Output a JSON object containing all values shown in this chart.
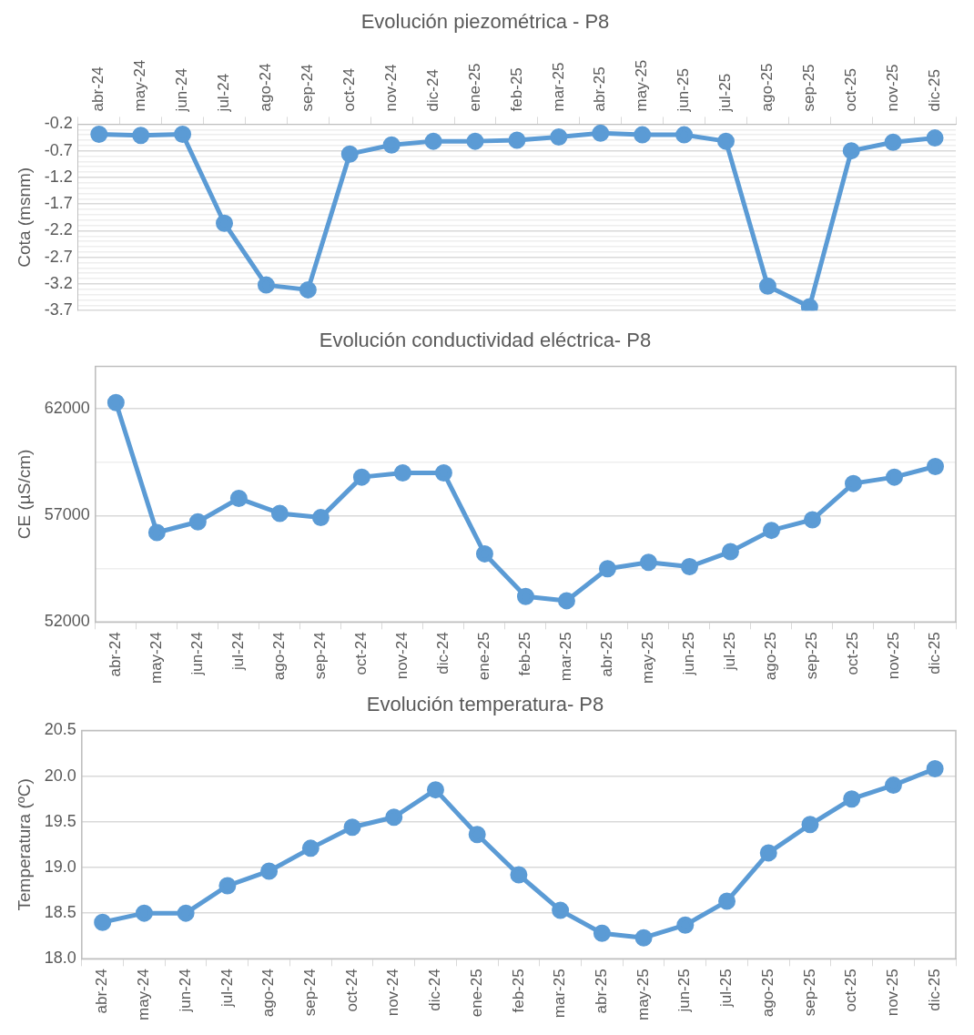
{
  "chart_data": [
    {
      "type": "line",
      "title": "Evolución piezométrica - P8",
      "ylabel": "Cota (msnm)",
      "categories": [
        "abr-24",
        "may-24",
        "jun-24",
        "jul-24",
        "ago-24",
        "sep-24",
        "oct-24",
        "nov-24",
        "dic-24",
        "ene-25",
        "feb-25",
        "mar-25",
        "abr-25",
        "may-25",
        "jun-25",
        "jul-25",
        "ago-25",
        "sep-25",
        "oct-25",
        "nov-25",
        "dic-25"
      ],
      "series": [
        {
          "color": "#5b9bd5",
          "values": [
            -0.39,
            -0.41,
            -0.39,
            -2.06,
            -3.22,
            -3.31,
            -0.76,
            -0.59,
            -0.52,
            -0.52,
            -0.5,
            -0.44,
            -0.37,
            -0.4,
            -0.4,
            -0.52,
            -3.24,
            -3.63,
            -0.7,
            -0.54,
            -0.46
          ]
        }
      ],
      "ylim": [
        -3.7,
        -0.2
      ],
      "yticks": [
        -3.7,
        {
          "value": -3.6,
          "label": null
        },
        {
          "value": -3.5,
          "label": null
        },
        {
          "value": -3.4,
          "label": null
        },
        {
          "value": -3.3,
          "label": null
        },
        -3.2,
        {
          "value": -3.1,
          "label": null
        },
        {
          "value": -3.0,
          "label": null
        },
        {
          "value": -2.9,
          "label": null
        },
        {
          "value": -2.8,
          "label": null
        },
        -2.7,
        {
          "value": -2.6,
          "label": null
        },
        {
          "value": -2.5,
          "label": null
        },
        {
          "value": -2.4,
          "label": null
        },
        {
          "value": -2.3,
          "label": null
        },
        -2.2,
        {
          "value": -2.1,
          "label": null
        },
        {
          "value": -2.0,
          "label": null
        },
        {
          "value": -1.9,
          "label": null
        },
        {
          "value": -1.8,
          "label": null
        },
        -1.7,
        {
          "value": -1.6,
          "label": null
        },
        {
          "value": -1.5,
          "label": null
        },
        {
          "value": -1.4,
          "label": null
        },
        {
          "value": -1.3,
          "label": null
        },
        -1.2,
        {
          "value": -1.1,
          "label": null
        },
        {
          "value": -1.0,
          "label": null
        },
        {
          "value": -0.9,
          "label": null
        },
        {
          "value": -0.8,
          "label": null
        },
        -0.7,
        {
          "value": -0.6,
          "label": null
        },
        {
          "value": -0.5,
          "label": null
        },
        {
          "value": -0.4,
          "label": null
        },
        {
          "value": -0.3,
          "label": null
        },
        -0.2
      ],
      "grid": "y",
      "marker": "circle"
    },
    {
      "type": "line",
      "title": "Evolución conductividad eléctrica- P8",
      "ylabel": "CE (µS/cm)",
      "categories": [
        "abr-24",
        "may-24",
        "jun-24",
        "jul-24",
        "ago-24",
        "sep-24",
        "oct-24",
        "nov-24",
        "dic-24",
        "ene-25",
        "feb-25",
        "mar-25",
        "abr-25",
        "may-25",
        "jun-25",
        "jul-25",
        "ago-25",
        "sep-25",
        "oct-25",
        "nov-25",
        "dic-25"
      ],
      "series": [
        {
          "color": "#5b9bd5",
          "values": [
            62300,
            56200,
            56700,
            57800,
            57100,
            56900,
            58800,
            59000,
            59000,
            55200,
            53200,
            53000,
            54500,
            54800,
            54600,
            55300,
            56300,
            56800,
            58500,
            58800,
            59300
          ]
        }
      ],
      "ylim": [
        52000,
        64000
      ],
      "yticks": [
        52000,
        {
          "value": 54500,
          "label": null
        },
        57000,
        {
          "value": 59500,
          "label": null
        },
        62000
      ],
      "grid": "y",
      "marker": "circle"
    },
    {
      "type": "line",
      "title": "Evolución temperatura- P8",
      "ylabel": "Temperatura (ºC)",
      "categories": [
        "abr-24",
        "may-24",
        "jun-24",
        "jul-24",
        "ago-24",
        "sep-24",
        "oct-24",
        "nov-24",
        "dic-24",
        "ene-25",
        "feb-25",
        "mar-25",
        "abr-25",
        "may-25",
        "jun-25",
        "jul-25",
        "ago-25",
        "sep-25",
        "oct-25",
        "nov-25",
        "dic-25"
      ],
      "series": [
        {
          "color": "#5b9bd5",
          "values": [
            18.4,
            18.5,
            18.5,
            18.8,
            18.96,
            19.21,
            19.44,
            19.55,
            19.85,
            19.36,
            18.92,
            18.53,
            18.28,
            18.23,
            18.37,
            18.63,
            19.16,
            19.47,
            19.75,
            19.9,
            20.08
          ]
        }
      ],
      "ylim": [
        18.0,
        20.5
      ],
      "yticks": [
        {
          "value": 18.0,
          "label": "18.0"
        },
        18.5,
        {
          "value": 19.0,
          "label": "19.0"
        },
        19.5,
        {
          "value": 20.0,
          "label": "20.0"
        },
        20.5
      ],
      "grid": "y",
      "marker": "circle"
    }
  ]
}
